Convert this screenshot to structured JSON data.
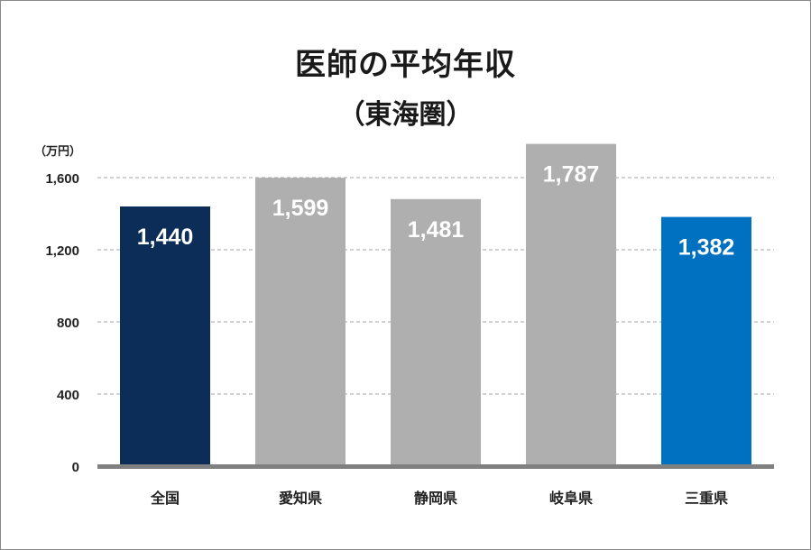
{
  "chart_data": {
    "type": "bar",
    "title": "医師の平均年収",
    "subtitle": "（東海圏）",
    "ylabel": "（万円）",
    "categories": [
      "全国",
      "愛知県",
      "静岡県",
      "岐阜県",
      "三重県"
    ],
    "values": [
      1440,
      1599,
      1481,
      1787,
      1382
    ],
    "value_labels": [
      "1,440",
      "1,599",
      "1,481",
      "1,787",
      "1,382"
    ],
    "bar_colors": [
      "#0b2d57",
      "#afafaf",
      "#afafaf",
      "#afafaf",
      "#0070c0"
    ],
    "yticks": [
      0,
      400,
      800,
      1200,
      1600
    ],
    "ytick_labels": [
      "0",
      "400",
      "800",
      "1,200",
      "1,600"
    ],
    "ylim": [
      0,
      1780
    ],
    "grid": true,
    "grid_style": "dashed",
    "legend": "none"
  }
}
